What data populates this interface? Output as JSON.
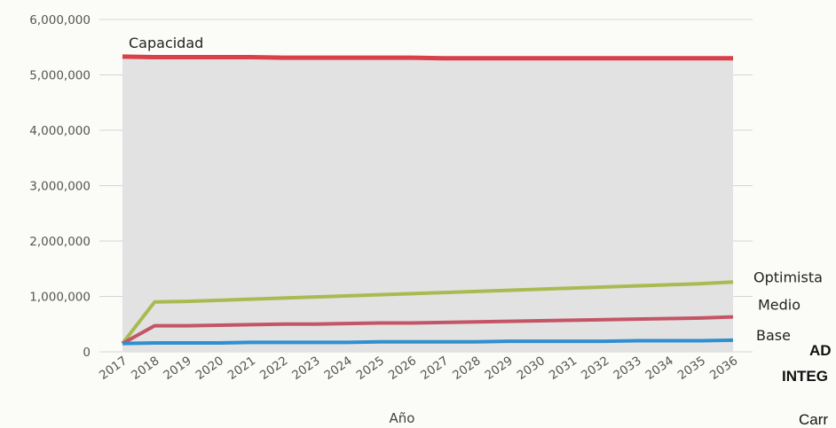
{
  "chart_data": {
    "type": "area",
    "title": "",
    "xlabel": "Año",
    "ylabel": "",
    "ylim": [
      0,
      6000000
    ],
    "yticks": [
      "0",
      "1,000,000",
      "2,000,000",
      "3,000,000",
      "4,000,000",
      "5,000,000",
      "6,000,000"
    ],
    "ytick_values": [
      0,
      1000000,
      2000000,
      3000000,
      4000000,
      5000000,
      6000000
    ],
    "categories": [
      "2017",
      "2018",
      "2019",
      "2020",
      "2021",
      "2022",
      "2023",
      "2024",
      "2025",
      "2026",
      "2027",
      "2028",
      "2029",
      "2030",
      "2031",
      "2032",
      "2033",
      "2034",
      "2035",
      "2036"
    ],
    "grid": true,
    "legend": "inline-right",
    "series": [
      {
        "name": "Capacidad",
        "color": "#d9404a",
        "fill": "#e2e2e2",
        "values": [
          5330000,
          5320000,
          5320000,
          5320000,
          5320000,
          5310000,
          5310000,
          5310000,
          5310000,
          5310000,
          5300000,
          5300000,
          5300000,
          5300000,
          5300000,
          5300000,
          5300000,
          5300000,
          5300000,
          5300000
        ]
      },
      {
        "name": "Optimista",
        "color": "#a8bb52",
        "values": [
          150000,
          900000,
          910000,
          930000,
          950000,
          970000,
          990000,
          1010000,
          1030000,
          1050000,
          1070000,
          1090000,
          1110000,
          1130000,
          1150000,
          1170000,
          1190000,
          1210000,
          1230000,
          1260000
        ]
      },
      {
        "name": "Medio",
        "color": "#c45566",
        "values": [
          150000,
          470000,
          470000,
          480000,
          490000,
          500000,
          500000,
          510000,
          520000,
          520000,
          530000,
          540000,
          550000,
          560000,
          570000,
          580000,
          590000,
          600000,
          610000,
          630000
        ]
      },
      {
        "name": "Base",
        "color": "#2f8fd0",
        "values": [
          150000,
          160000,
          160000,
          160000,
          170000,
          170000,
          170000,
          170000,
          180000,
          180000,
          180000,
          180000,
          190000,
          190000,
          190000,
          190000,
          200000,
          200000,
          200000,
          210000
        ]
      }
    ]
  },
  "clipped_text": [
    "AD",
    "INTEG",
    "Carr"
  ]
}
